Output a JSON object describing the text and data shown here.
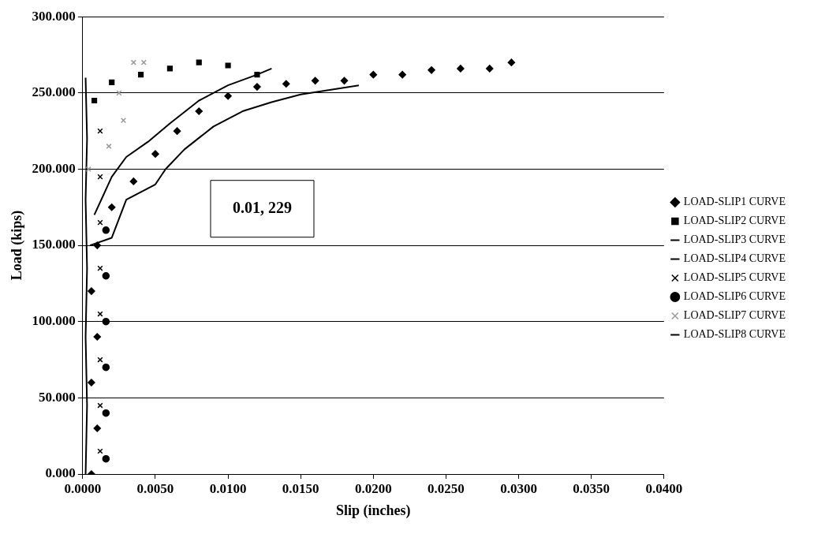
{
  "chart_data": {
    "type": "scatter",
    "xlabel": "Slip (inches)",
    "ylabel": "Load (kips)",
    "xlim": [
      0,
      0.04
    ],
    "ylim": [
      0,
      300
    ],
    "xticks": [
      {
        "value": 0,
        "label": "0.0000"
      },
      {
        "value": 0.005,
        "label": "0.0050"
      },
      {
        "value": 0.01,
        "label": "0.0100"
      },
      {
        "value": 0.015,
        "label": "0.0150"
      },
      {
        "value": 0.02,
        "label": "0.0200"
      },
      {
        "value": 0.025,
        "label": "0.0250"
      },
      {
        "value": 0.03,
        "label": "0.0300"
      },
      {
        "value": 0.035,
        "label": "0.0350"
      },
      {
        "value": 0.04,
        "label": "0.0400"
      }
    ],
    "yticks": [
      {
        "value": 0,
        "label": "0.000"
      },
      {
        "value": 50,
        "label": "50.000"
      },
      {
        "value": 100,
        "label": "100.000"
      },
      {
        "value": 150,
        "label": "150.000"
      },
      {
        "value": 200,
        "label": "200.000"
      },
      {
        "value": 250,
        "label": "250.000"
      },
      {
        "value": 300,
        "label": "300.000"
      }
    ],
    "grid": "y",
    "legend": "right",
    "annotations": [
      "0.01, 229"
    ],
    "series": [
      {
        "name": "LOAD-SLIP1 CURVE",
        "color": "#000000",
        "marker": "diamond",
        "x": [
          0.0006,
          0.001,
          0.0006,
          0.001,
          0.0006,
          0.001,
          0.002,
          0.0035,
          0.005,
          0.0065,
          0.008,
          0.01,
          0.012,
          0.014,
          0.016,
          0.018,
          0.02,
          0.022,
          0.024,
          0.026,
          0.028,
          0.0295
        ],
        "values": [
          0,
          30,
          60,
          90,
          120,
          150,
          175,
          192,
          210,
          225,
          238,
          248,
          254,
          256,
          258,
          258,
          262,
          262,
          265,
          266,
          266,
          270
        ]
      },
      {
        "name": "LOAD-SLIP2 CURVE",
        "color": "#000000",
        "marker": "square",
        "x": [
          0.0008,
          0.002,
          0.004,
          0.006,
          0.008,
          0.01,
          0.012
        ],
        "values": [
          245,
          257,
          262,
          266,
          270,
          268,
          262
        ]
      },
      {
        "name": "LOAD-SLIP3 CURVE",
        "type": "line",
        "color": "#000000",
        "marker": "none",
        "x": [
          0.0005,
          0.002,
          0.003,
          0.005,
          0.0057,
          0.007,
          0.009,
          0.011,
          0.013,
          0.015,
          0.017,
          0.019
        ],
        "values": [
          150,
          155,
          180,
          190,
          200,
          213,
          228,
          238,
          244,
          249,
          252,
          255
        ]
      },
      {
        "name": "LOAD-SLIP4 CURVE",
        "type": "line",
        "color": "#000000",
        "marker": "none",
        "x": [
          0.0008,
          0.002,
          0.003,
          0.0045,
          0.006,
          0.008,
          0.01,
          0.012,
          0.013
        ],
        "values": [
          170,
          195,
          208,
          218,
          230,
          245,
          255,
          262,
          266
        ]
      },
      {
        "name": "LOAD-SLIP5 CURVE",
        "color": "#000000",
        "marker": "cross",
        "x": [
          0.0012,
          0.0012,
          0.0012,
          0.0012,
          0.0012,
          0.0012,
          0.0012,
          0.0012
        ],
        "values": [
          15,
          45,
          75,
          105,
          135,
          165,
          195,
          225
        ]
      },
      {
        "name": "LOAD-SLIP6 CURVE",
        "color": "#000000",
        "marker": "circle",
        "x": [
          0.0016,
          0.0016,
          0.0016,
          0.0016,
          0.0016,
          0.0016
        ],
        "values": [
          10,
          40,
          70,
          100,
          130,
          160
        ]
      },
      {
        "name": "LOAD-SLIP7 CURVE",
        "color": "#9a9a9a",
        "marker": "cross",
        "x": [
          0.0004,
          0.0018,
          0.0028,
          0.0025,
          0.0035,
          0.0042
        ],
        "values": [
          200,
          215,
          232,
          250,
          270,
          270
        ]
      },
      {
        "name": "LOAD-SLIP8 CURVE",
        "type": "line",
        "color": "#000000",
        "marker": "none",
        "x": [
          0.0002,
          0.0003,
          0.0002,
          0.0003,
          0.0002,
          0.0003,
          0.0002
        ],
        "values": [
          0,
          45,
          90,
          135,
          180,
          220,
          260
        ]
      }
    ]
  }
}
